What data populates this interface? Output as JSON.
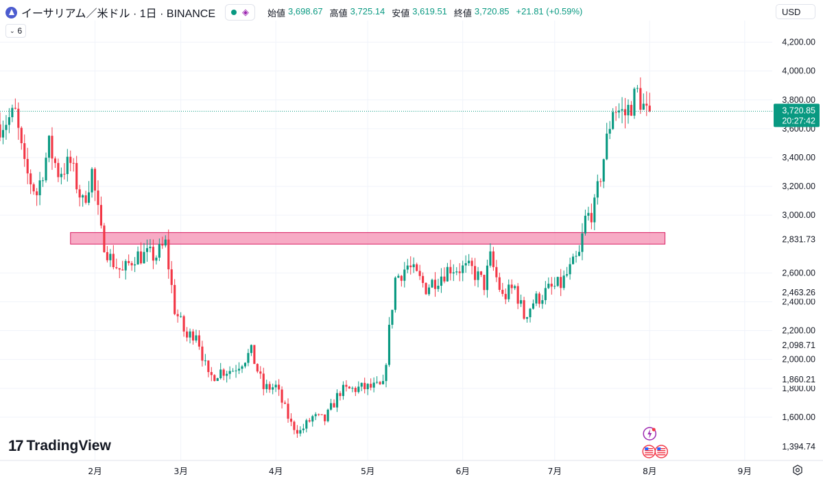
{
  "header": {
    "title": "イーサリアム／米ドル · 1日 · BINANCE",
    "open_label": "始値",
    "open": "3,698.67",
    "high_label": "高値",
    "high": "3,725.14",
    "low_label": "安値",
    "low": "3,619.51",
    "close_label": "終値",
    "close": "3,720.85",
    "change": "+21.81 (+0.59%)"
  },
  "indicator_count": "6",
  "currency": "USD",
  "brand": "TradingView",
  "colors": {
    "up": "#089981",
    "down": "#f23645",
    "zone": "#f48fb1",
    "zone_border": "#d81b60"
  },
  "chart_data": {
    "type": "candlestick",
    "title": "イーサリアム／米ドル · 1日 · BINANCE",
    "y_tick_labels": [
      "4,200.00",
      "4,000.00",
      "3,800.00",
      "3,600.00",
      "3,400.00",
      "3,200.00",
      "3,000.00",
      "2,600.00",
      "2,400.00",
      "2,200.00",
      "2,000.00",
      "1,800.00",
      "1,600.00"
    ],
    "y_ticks": [
      4200,
      4000,
      3800,
      3600,
      3400,
      3200,
      3000,
      2600,
      2400,
      2200,
      2000,
      1800,
      1600
    ],
    "ylim": [
      1300,
      4350
    ],
    "x_tick_labels": [
      "2月",
      "3月",
      "4月",
      "5月",
      "6月",
      "7月",
      "8月",
      "9月"
    ],
    "x_ticks": [
      "2025-02-01",
      "2025-03-01",
      "2025-04-01",
      "2025-05-01",
      "2025-06-01",
      "2025-07-01",
      "2025-08-01",
      "2025-09-01"
    ],
    "x_range": [
      "2025-01-01",
      "2025-09-10"
    ],
    "price_labels": [
      {
        "value": 2831.73,
        "text": "2,831.73"
      },
      {
        "value": 2463.26,
        "text": "2,463.26"
      },
      {
        "value": 2098.71,
        "text": "2,098.71"
      },
      {
        "value": 1860.21,
        "text": "1,860.21"
      },
      {
        "value": 1394.74,
        "text": "1,394.74"
      }
    ],
    "current_price": {
      "value": 3720.85,
      "text": "3,720.85",
      "countdown": "20:27:42"
    },
    "zone": {
      "from": "2025-01-24",
      "to": "2025-08-06",
      "low": 2800,
      "high": 2880
    },
    "anchors": [
      {
        "date": "2025-01-01",
        "close": 3630
      },
      {
        "date": "2025-01-06",
        "close": 3700
      },
      {
        "date": "2025-01-09",
        "close": 3320
      },
      {
        "date": "2025-01-13",
        "close": 3150
      },
      {
        "date": "2025-01-17",
        "close": 3480
      },
      {
        "date": "2025-01-20",
        "close": 3300
      },
      {
        "date": "2025-01-24",
        "close": 3360
      },
      {
        "date": "2025-01-28",
        "close": 3080
      },
      {
        "date": "2025-01-31",
        "close": 3300
      },
      {
        "date": "2025-02-03",
        "close": 2870
      },
      {
        "date": "2025-02-06",
        "close": 2700
      },
      {
        "date": "2025-02-10",
        "close": 2600
      },
      {
        "date": "2025-02-14",
        "close": 2720
      },
      {
        "date": "2025-02-21",
        "close": 2720
      },
      {
        "date": "2025-02-24",
        "close": 2800
      },
      {
        "date": "2025-02-27",
        "close": 2350
      },
      {
        "date": "2025-03-03",
        "close": 2150
      },
      {
        "date": "2025-03-06",
        "close": 2200
      },
      {
        "date": "2025-03-10",
        "close": 1870
      },
      {
        "date": "2025-03-14",
        "close": 1920
      },
      {
        "date": "2025-03-18",
        "close": 1930
      },
      {
        "date": "2025-03-24",
        "close": 2050
      },
      {
        "date": "2025-03-28",
        "close": 1800
      },
      {
        "date": "2025-04-01",
        "close": 1810
      },
      {
        "date": "2025-04-06",
        "close": 1550
      },
      {
        "date": "2025-04-09",
        "close": 1500
      },
      {
        "date": "2025-04-13",
        "close": 1600
      },
      {
        "date": "2025-04-17",
        "close": 1580
      },
      {
        "date": "2025-04-22",
        "close": 1780
      },
      {
        "date": "2025-04-28",
        "close": 1800
      },
      {
        "date": "2025-05-06",
        "close": 1810
      },
      {
        "date": "2025-05-08",
        "close": 2200
      },
      {
        "date": "2025-05-10",
        "close": 2560
      },
      {
        "date": "2025-05-14",
        "close": 2650
      },
      {
        "date": "2025-05-20",
        "close": 2500
      },
      {
        "date": "2025-05-28",
        "close": 2640
      },
      {
        "date": "2025-06-04",
        "close": 2620
      },
      {
        "date": "2025-06-08",
        "close": 2520
      },
      {
        "date": "2025-06-10",
        "close": 2700
      },
      {
        "date": "2025-06-14",
        "close": 2430
      },
      {
        "date": "2025-06-18",
        "close": 2500
      },
      {
        "date": "2025-06-21",
        "close": 2300
      },
      {
        "date": "2025-06-24",
        "close": 2400
      },
      {
        "date": "2025-06-29",
        "close": 2480
      },
      {
        "date": "2025-07-03",
        "close": 2520
      },
      {
        "date": "2025-07-09",
        "close": 2720
      },
      {
        "date": "2025-07-11",
        "close": 2970
      },
      {
        "date": "2025-07-14",
        "close": 3050
      },
      {
        "date": "2025-07-17",
        "close": 3400
      },
      {
        "date": "2025-07-20",
        "close": 3750
      },
      {
        "date": "2025-07-24",
        "close": 3700
      },
      {
        "date": "2025-07-28",
        "close": 3850
      },
      {
        "date": "2025-07-31",
        "close": 3700
      },
      {
        "date": "2025-08-01",
        "close": 3720.85
      }
    ]
  }
}
